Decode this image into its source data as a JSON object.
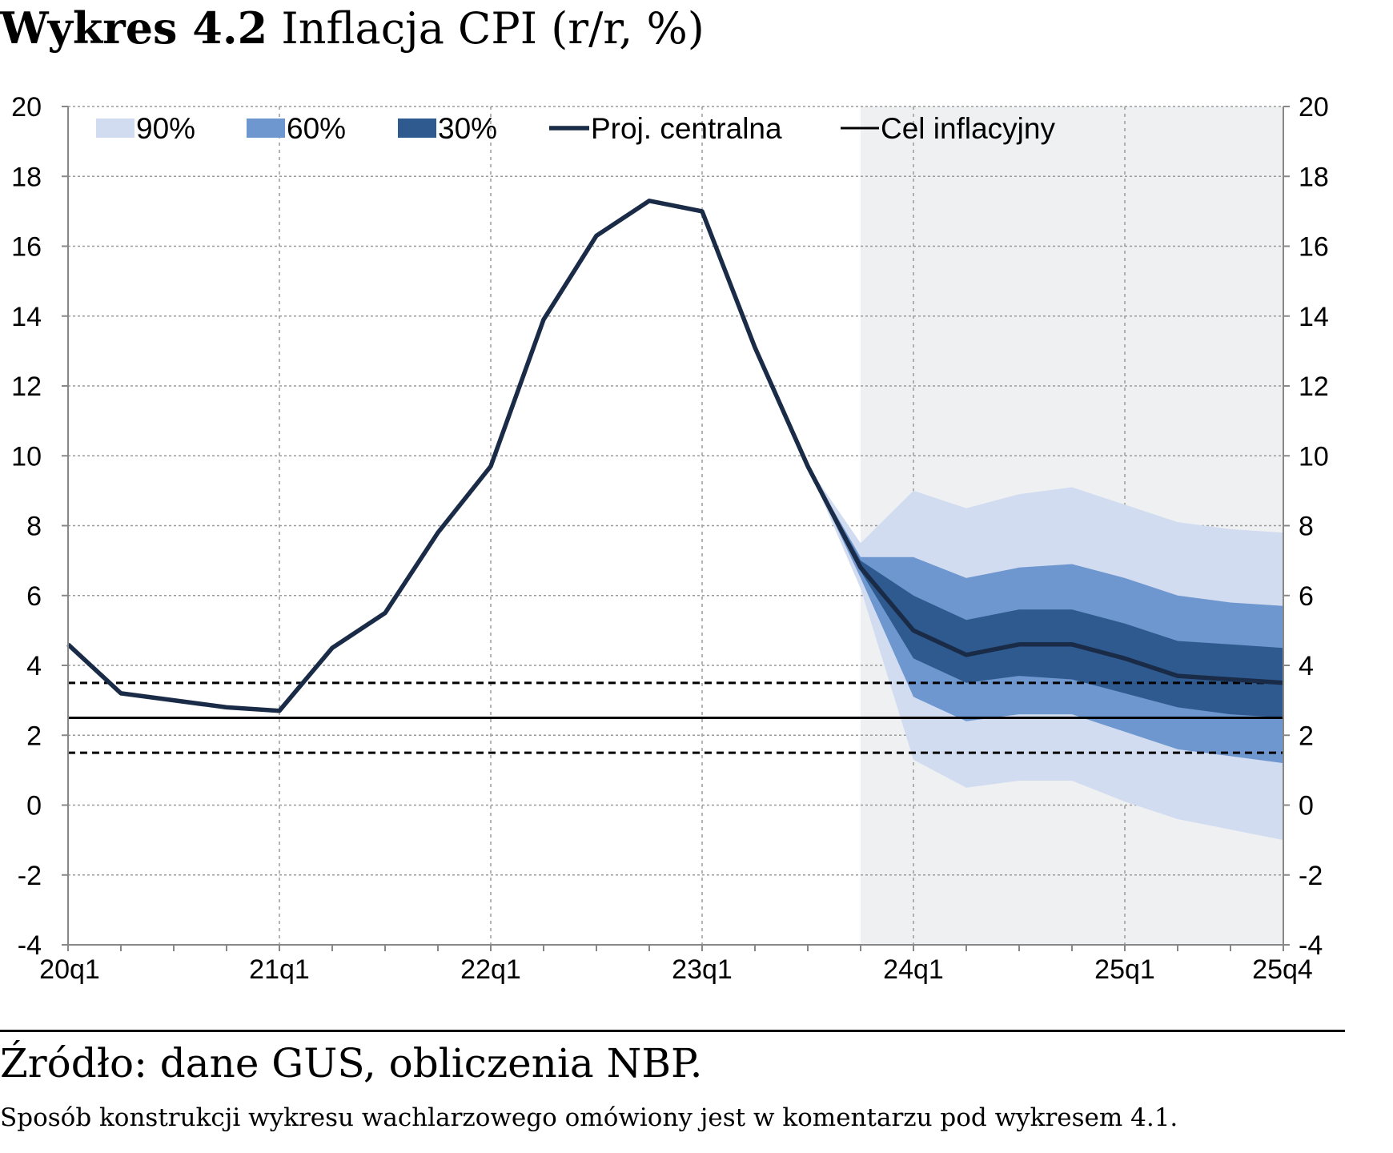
{
  "figure": {
    "label": "Wykres 4.2",
    "title": " Inflacja CPI (r/r, %)",
    "source": "Źródło: dane GUS, obliczenia NBP.",
    "note": "Sposób konstrukcji wykresu wachlarzowego omówiony jest w komentarzu pod wykresem 4.1."
  },
  "colors": {
    "band90": "#d1dcf0",
    "band60": "#6f97cf",
    "band30": "#2f5a8f",
    "central": "#1a2b47",
    "target": "#000000",
    "projection_bg": "#eff0f2",
    "grid": "#9a9a9a"
  },
  "chart_data": {
    "type": "area",
    "x": [
      "20q1",
      "20q2",
      "20q3",
      "20q4",
      "21q1",
      "21q2",
      "21q3",
      "21q4",
      "22q1",
      "22q2",
      "22q3",
      "22q4",
      "23q1",
      "23q2",
      "23q3",
      "23q4",
      "24q1",
      "24q2",
      "24q3",
      "24q4",
      "25q1",
      "25q2",
      "25q3",
      "25q4"
    ],
    "x_tick_labels": [
      "20q1",
      "21q1",
      "22q1",
      "23q1",
      "24q1",
      "25q1",
      "25q4"
    ],
    "ylim": [
      -4,
      20
    ],
    "y_ticks": [
      -4,
      -2,
      0,
      2,
      4,
      6,
      8,
      10,
      12,
      14,
      16,
      18,
      20
    ],
    "grid": true,
    "secondary_y_axis": true,
    "legend_position": "top",
    "legend": [
      {
        "label": "90%",
        "kind": "band90"
      },
      {
        "label": "60%",
        "kind": "band60"
      },
      {
        "label": "30%",
        "kind": "band30"
      },
      {
        "label": "Proj. centralna",
        "kind": "central"
      },
      {
        "label": "Cel inflacyjny",
        "kind": "target"
      }
    ],
    "projection_start": "23q4",
    "central": [
      4.6,
      3.2,
      3.0,
      2.8,
      2.7,
      4.5,
      5.5,
      7.8,
      9.7,
      13.9,
      16.3,
      17.3,
      17.0,
      13.1,
      9.7,
      6.8,
      5.0,
      4.3,
      4.6,
      4.6,
      4.2,
      3.7,
      3.6,
      3.5
    ],
    "fan_x": [
      "23q3",
      "23q4",
      "24q1",
      "24q2",
      "24q3",
      "24q4",
      "25q1",
      "25q2",
      "25q3",
      "25q4"
    ],
    "band90": {
      "lower": [
        9.7,
        6.2,
        1.3,
        0.5,
        0.7,
        0.7,
        0.1,
        -0.4,
        -0.7,
        -1.0
      ],
      "upper": [
        9.7,
        7.5,
        9.0,
        8.5,
        8.9,
        9.1,
        8.6,
        8.1,
        7.9,
        7.8
      ]
    },
    "band60": {
      "lower": [
        9.7,
        6.5,
        3.1,
        2.4,
        2.6,
        2.6,
        2.1,
        1.6,
        1.4,
        1.2
      ],
      "upper": [
        9.7,
        7.1,
        7.1,
        6.5,
        6.8,
        6.9,
        6.5,
        6.0,
        5.8,
        5.7
      ]
    },
    "band30": {
      "lower": [
        9.7,
        6.7,
        4.2,
        3.5,
        3.7,
        3.6,
        3.2,
        2.8,
        2.6,
        2.5
      ],
      "upper": [
        9.7,
        7.0,
        6.0,
        5.3,
        5.6,
        5.6,
        5.2,
        4.7,
        4.6,
        4.5
      ]
    },
    "target": 2.5,
    "tolerance_band": [
      1.5,
      3.5
    ]
  }
}
